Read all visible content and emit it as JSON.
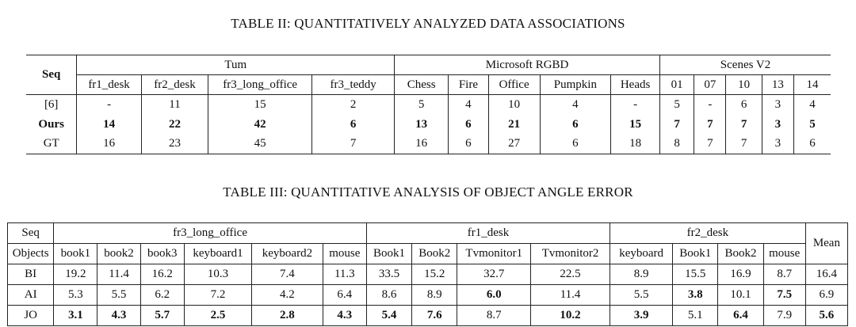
{
  "table2": {
    "caption": "TABLE II: QUANTITATIVELY ANALYZED DATA ASSOCIATIONS",
    "row_header": "Seq",
    "groups": [
      {
        "name": "Tum",
        "columns": [
          "fr1_desk",
          "fr2_desk",
          "fr3_long_office",
          "fr3_teddy"
        ]
      },
      {
        "name": "Microsoft RGBD",
        "columns": [
          "Chess",
          "Fire",
          "Office",
          "Pumpkin",
          "Heads"
        ]
      },
      {
        "name": "Scenes V2",
        "columns": [
          "01",
          "07",
          "10",
          "13",
          "14"
        ]
      }
    ],
    "rows": [
      {
        "label": "[6]",
        "bold": false,
        "values": [
          "-",
          "11",
          "15",
          "2",
          "5",
          "4",
          "10",
          "4",
          "-",
          "5",
          "-",
          "6",
          "3",
          "4"
        ]
      },
      {
        "label": "Ours",
        "bold": true,
        "values": [
          "14",
          "22",
          "42",
          "6",
          "13",
          "6",
          "21",
          "6",
          "15",
          "7",
          "7",
          "7",
          "3",
          "5"
        ]
      },
      {
        "label": "GT",
        "bold": false,
        "values": [
          "16",
          "23",
          "45",
          "7",
          "16",
          "6",
          "27",
          "6",
          "18",
          "8",
          "7",
          "7",
          "3",
          "6"
        ]
      }
    ]
  },
  "table3": {
    "caption": "TABLE III: QUANTITATIVE ANALYSIS OF OBJECT ANGLE ERROR",
    "row_header_top": "Seq",
    "row_header_sub": "Objects",
    "mean_header": "Mean",
    "groups": [
      {
        "name": "fr3_long_office",
        "columns": [
          "book1",
          "book2",
          "book3",
          "keyboard1",
          "keyboard2",
          "mouse"
        ]
      },
      {
        "name": "fr1_desk",
        "columns": [
          "Book1",
          "Book2",
          "Tvmonitor1",
          "Tvmonitor2"
        ]
      },
      {
        "name": "fr2_desk",
        "columns": [
          "keyboard",
          "Book1",
          "Book2",
          "mouse"
        ]
      }
    ],
    "rows": [
      {
        "label": "BI",
        "values": [
          "19.2",
          "11.4",
          "16.2",
          "10.3",
          "7.4",
          "11.3",
          "33.5",
          "15.2",
          "32.7",
          "22.5",
          "8.9",
          "15.5",
          "16.9",
          "8.7",
          "16.4"
        ],
        "bold": [
          false,
          false,
          false,
          false,
          false,
          false,
          false,
          false,
          false,
          false,
          false,
          false,
          false,
          false,
          false
        ]
      },
      {
        "label": "AI",
        "values": [
          "5.3",
          "5.5",
          "6.2",
          "7.2",
          "4.2",
          "6.4",
          "8.6",
          "8.9",
          "6.0",
          "11.4",
          "5.5",
          "3.8",
          "10.1",
          "7.5",
          "6.9"
        ],
        "bold": [
          false,
          false,
          false,
          false,
          false,
          false,
          false,
          false,
          true,
          false,
          false,
          true,
          false,
          true,
          false
        ]
      },
      {
        "label": "JO",
        "values": [
          "3.1",
          "4.3",
          "5.7",
          "2.5",
          "2.8",
          "4.3",
          "5.4",
          "7.6",
          "8.7",
          "10.2",
          "3.9",
          "5.1",
          "6.4",
          "7.9",
          "5.6"
        ],
        "bold": [
          true,
          true,
          true,
          true,
          true,
          true,
          true,
          true,
          false,
          true,
          true,
          false,
          true,
          false,
          true
        ]
      }
    ]
  }
}
